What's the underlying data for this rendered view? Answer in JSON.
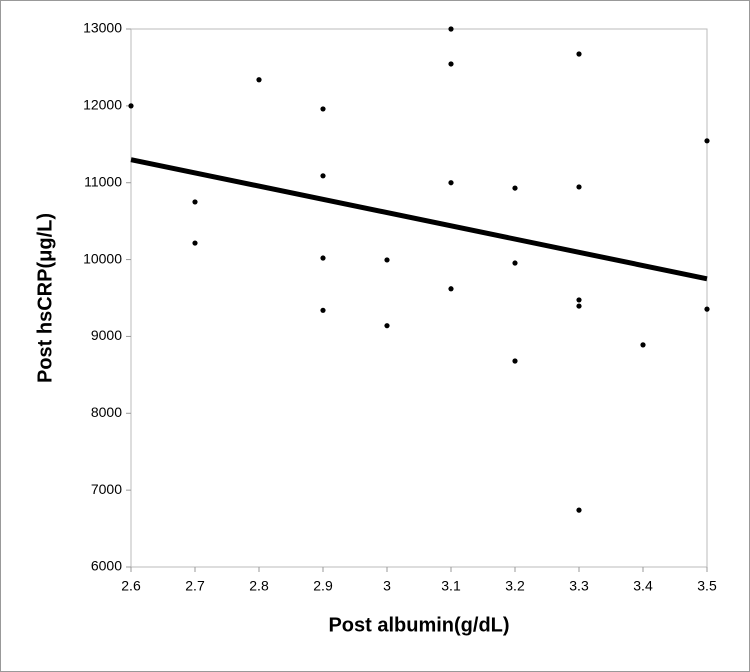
{
  "chart_data": {
    "type": "scatter",
    "x_label": "Post albumin(g/dL)",
    "y_label": "Post hsCRP(μg/L)",
    "x": [
      2.6,
      2.7,
      2.7,
      2.8,
      2.9,
      2.9,
      2.9,
      2.9,
      3.0,
      3.0,
      3.1,
      3.1,
      3.1,
      3.1,
      3.2,
      3.2,
      3.2,
      3.3,
      3.3,
      3.3,
      3.3,
      3.3,
      3.4,
      3.5,
      3.5
    ],
    "values": [
      12000,
      10750,
      10215,
      12340,
      11960,
      11090,
      10020,
      9340,
      9995,
      9140,
      13000,
      12545,
      11000,
      9620,
      10930,
      9955,
      8680,
      12675,
      10945,
      9475,
      9395,
      6740,
      8890,
      11545,
      9355
    ],
    "color": "#000000",
    "trendline": {
      "x": [
        2.6,
        3.5
      ],
      "values": [
        11300,
        9750
      ],
      "color": "#000000"
    },
    "xlim": [
      2.6,
      3.5
    ],
    "xticks": [
      2.6,
      2.7,
      2.8,
      2.9,
      3,
      3.1,
      3.2,
      3.3,
      3.4,
      3.5
    ],
    "ylim": [
      6000,
      13000
    ],
    "yticks": [
      6000,
      7000,
      8000,
      9000,
      10000,
      11000,
      12000,
      13000
    ],
    "grid": false
  }
}
